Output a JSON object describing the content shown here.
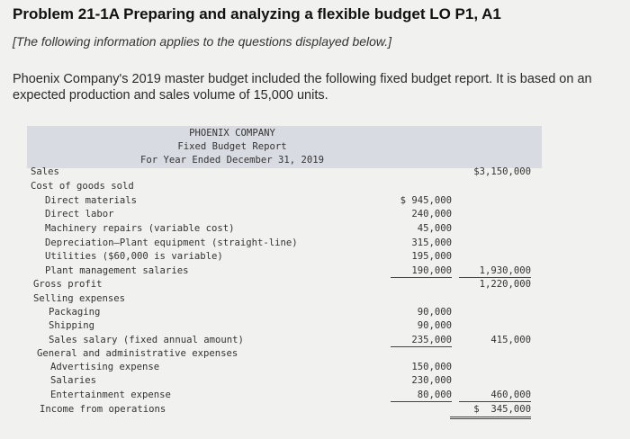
{
  "title": "Problem 21-1A Preparing and analyzing a flexible budget LO P1, A1",
  "note": "[The following information applies to the questions displayed below.]",
  "intro": "Phoenix Company's 2019 master budget included the following fixed budget report. It is based on an expected production and sales volume of 15,000 units.",
  "report": {
    "company": "PHOENIX COMPANY",
    "name": "Fixed Budget Report",
    "period": "For Year Ended December 31, 2019",
    "rows": [
      {
        "label": "Sales",
        "indent": 0,
        "c1": "",
        "c2": "$3,150,000"
      },
      {
        "label": "Cost of goods sold",
        "indent": 0,
        "c1": "",
        "c2": ""
      },
      {
        "label": "Direct materials",
        "indent": 2,
        "c1": "$ 945,000",
        "c2": ""
      },
      {
        "label": "Direct labor",
        "indent": 2,
        "c1": "240,000",
        "c2": ""
      },
      {
        "label": "Machinery repairs (variable cost)",
        "indent": 2,
        "c1": "45,000",
        "c2": ""
      },
      {
        "label": "Depreciation—Plant equipment (straight-line)",
        "indent": 2,
        "c1": "315,000",
        "c2": ""
      },
      {
        "label": "Utilities ($60,000 is variable)",
        "indent": 2,
        "c1": "195,000",
        "c2": ""
      },
      {
        "label": "Plant management salaries",
        "indent": 2,
        "c1": "190,000",
        "c2": "1,930,000"
      },
      {
        "label": "Gross profit",
        "indent": 0,
        "c1": "",
        "c2": "1,220,000"
      },
      {
        "label": "Selling expenses",
        "indent": 0,
        "c1": "",
        "c2": ""
      },
      {
        "label": "Packaging",
        "indent": 2,
        "c1": "90,000",
        "c2": ""
      },
      {
        "label": "Shipping",
        "indent": 2,
        "c1": "90,000",
        "c2": ""
      },
      {
        "label": "Sales salary (fixed annual amount)",
        "indent": 2,
        "c1": "235,000",
        "c2": "415,000"
      },
      {
        "label": "General and administrative expenses",
        "indent": 0,
        "c1": "",
        "c2": ""
      },
      {
        "label": "Advertising expense",
        "indent": 2,
        "c1": "150,000",
        "c2": ""
      },
      {
        "label": "Salaries",
        "indent": 2,
        "c1": "230,000",
        "c2": ""
      },
      {
        "label": "Entertainment expense",
        "indent": 2,
        "c1": "80,000",
        "c2": "460,000"
      },
      {
        "label": "Income from operations",
        "indent": 0,
        "c1": "",
        "c2": "$  345,000"
      }
    ]
  }
}
